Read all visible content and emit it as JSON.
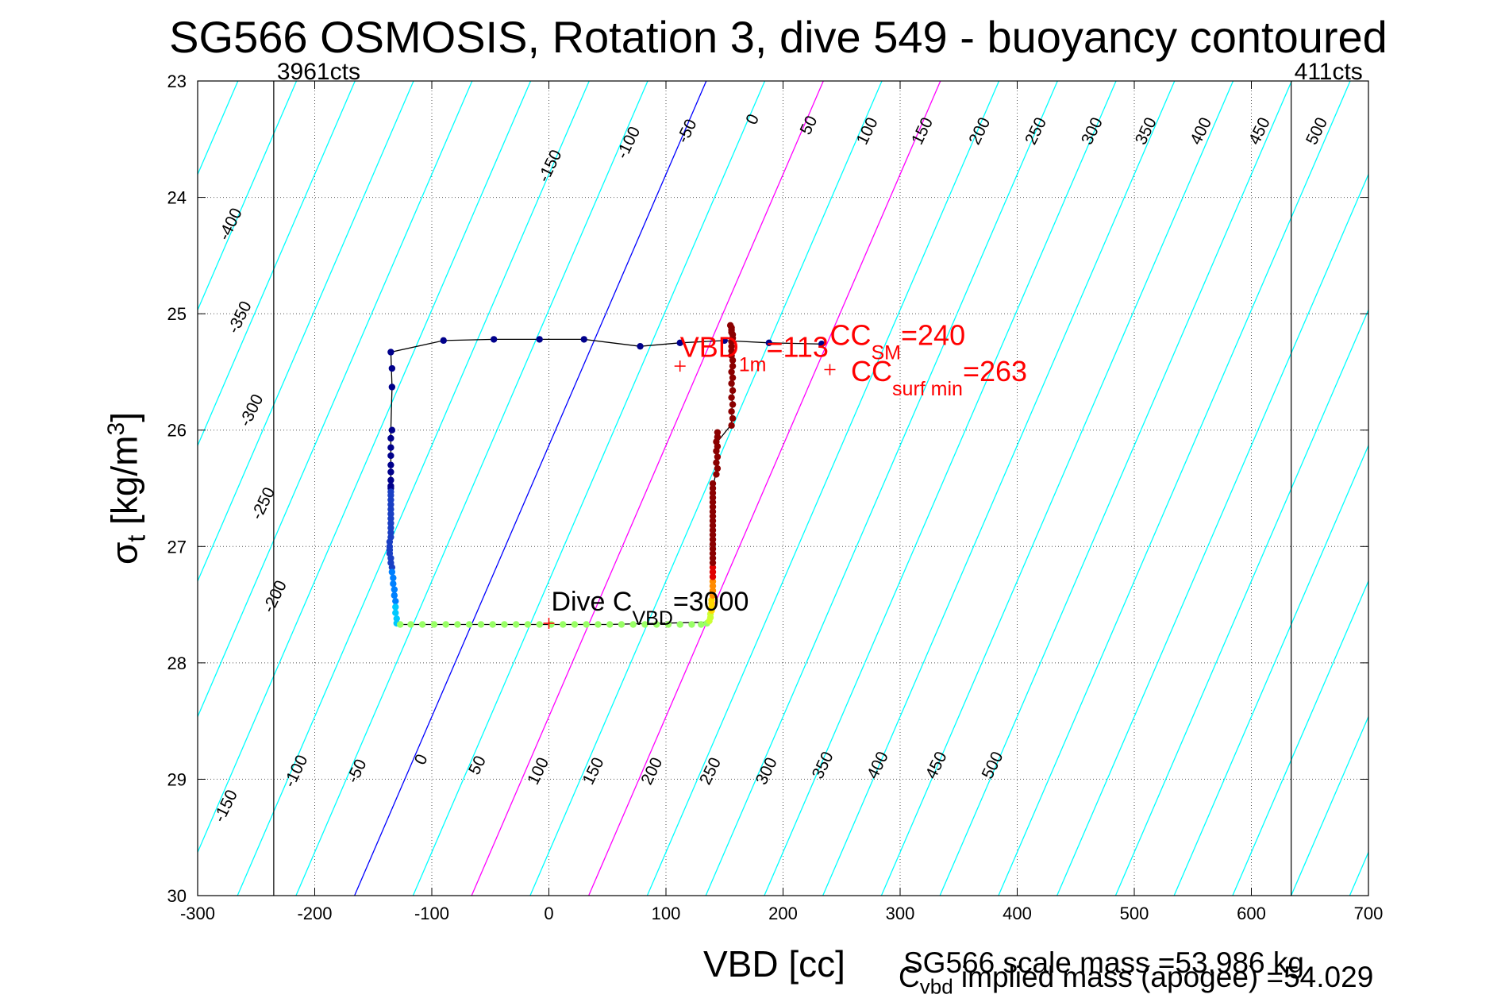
{
  "chart_data": {
    "type": "scatter",
    "title": "SG566 OSMOSIS, Rotation 3, dive 549 - buoyancy contoured",
    "xlabel": "VBD [cc]",
    "ylabel": {
      "main": "σ",
      "sub": "t",
      "unit": " [kg/m",
      "sup": "3",
      "close": "]"
    },
    "xlim": [
      -300,
      700
    ],
    "ylim": [
      23,
      30
    ],
    "y_reversed": true,
    "x_ticks": [
      -300,
      -200,
      -100,
      0,
      100,
      200,
      300,
      400,
      500,
      600,
      700
    ],
    "y_ticks": [
      23,
      24,
      25,
      26,
      27,
      28,
      29,
      30
    ],
    "grid": true,
    "count_markers": [
      {
        "label": "3961cts",
        "x": -235
      },
      {
        "label": "411cts",
        "x": 634
      }
    ],
    "contour_slope_sigma_per_cc": 0.0233,
    "contour_spacing_cc": 50,
    "special_contours": [
      {
        "value": 0,
        "color": "#0000ff"
      },
      {
        "value": 100,
        "color": "#ff00ff"
      },
      {
        "value": 200,
        "color": "#ff00ff"
      }
    ],
    "contour_color": "#00ffff",
    "top_contour_labels": [
      {
        "text": "-400",
        "x": -268,
        "y": 24.25
      },
      {
        "text": "-350",
        "x": -260,
        "y": 25.05
      },
      {
        "text": "-300",
        "x": -250,
        "y": 25.85
      },
      {
        "text": "-250",
        "x": -240,
        "y": 26.65
      },
      {
        "text": "-200",
        "x": -230,
        "y": 27.45
      },
      {
        "text": "-150",
        "x": 5,
        "y": 23.75
      },
      {
        "text": "-100",
        "x": 72,
        "y": 23.55
      },
      {
        "text": "-50",
        "x": 122,
        "y": 23.45
      },
      {
        "text": "0",
        "x": 178,
        "y": 23.35
      },
      {
        "text": "50",
        "x": 226,
        "y": 23.4
      },
      {
        "text": "100",
        "x": 276,
        "y": 23.45
      },
      {
        "text": "150",
        "x": 323,
        "y": 23.45
      },
      {
        "text": "200",
        "x": 372,
        "y": 23.45
      },
      {
        "text": "250",
        "x": 420,
        "y": 23.45
      },
      {
        "text": "300",
        "x": 468,
        "y": 23.45
      },
      {
        "text": "350",
        "x": 514,
        "y": 23.45
      },
      {
        "text": "400",
        "x": 561,
        "y": 23.45
      },
      {
        "text": "450",
        "x": 611,
        "y": 23.45
      },
      {
        "text": "500",
        "x": 660,
        "y": 23.45
      }
    ],
    "bottom_contour_labels": [
      {
        "text": "-150",
        "x": -272,
        "y": 29.25
      },
      {
        "text": "-100",
        "x": -212,
        "y": 28.95
      },
      {
        "text": "-50",
        "x": -160,
        "y": 28.95
      },
      {
        "text": "0",
        "x": -105,
        "y": 28.85
      },
      {
        "text": "50",
        "x": -57,
        "y": 28.9
      },
      {
        "text": "100",
        "x": -5,
        "y": 28.95
      },
      {
        "text": "150",
        "x": 42,
        "y": 28.95
      },
      {
        "text": "200",
        "x": 92,
        "y": 28.95
      },
      {
        "text": "250",
        "x": 142,
        "y": 28.95
      },
      {
        "text": "300",
        "x": 190,
        "y": 28.95
      },
      {
        "text": "350",
        "x": 238,
        "y": 28.9
      },
      {
        "text": "400",
        "x": 285,
        "y": 28.9
      },
      {
        "text": "450",
        "x": 335,
        "y": 28.9
      },
      {
        "text": "500",
        "x": 383,
        "y": 28.9
      }
    ],
    "trajectory": [
      {
        "x": 233,
        "y": 25.26
      },
      {
        "x": 188,
        "y": 25.25
      },
      {
        "x": 150,
        "y": 25.23
      },
      {
        "x": 112,
        "y": 25.25
      },
      {
        "x": 78,
        "y": 25.28
      },
      {
        "x": 30,
        "y": 25.22
      },
      {
        "x": -8,
        "y": 25.22
      },
      {
        "x": -47,
        "y": 25.22
      },
      {
        "x": -90,
        "y": 25.23
      },
      {
        "x": -135,
        "y": 25.33
      },
      {
        "x": -134,
        "y": 25.63
      },
      {
        "x": -135,
        "y": 26.0
      },
      {
        "x": -135,
        "y": 26.5
      },
      {
        "x": -136,
        "y": 27.0
      },
      {
        "x": -132,
        "y": 27.4
      },
      {
        "x": -130,
        "y": 27.67
      },
      {
        "x": -50,
        "y": 27.67
      },
      {
        "x": 50,
        "y": 27.67
      },
      {
        "x": 137,
        "y": 27.65
      },
      {
        "x": 140,
        "y": 27.3
      },
      {
        "x": 140,
        "y": 26.5
      },
      {
        "x": 144,
        "y": 26.3
      },
      {
        "x": 144,
        "y": 26.1
      },
      {
        "x": 156,
        "y": 25.95
      },
      {
        "x": 157,
        "y": 25.6
      },
      {
        "x": 156,
        "y": 25.2
      }
    ],
    "point_groups": [
      {
        "color": "#00008b",
        "x": [
          233,
          188,
          150,
          112,
          78,
          30,
          -8,
          -47,
          -90,
          -135,
          -134,
          -134,
          -134,
          -135,
          -135,
          -135,
          -135,
          -135,
          -135,
          -135,
          -135
        ],
        "y": [
          25.26,
          25.25,
          25.23,
          25.25,
          25.28,
          25.22,
          25.22,
          25.22,
          25.23,
          25.33,
          25.47,
          25.63,
          26.0,
          26.07,
          26.15,
          26.22,
          26.3,
          26.36,
          26.43,
          26.48,
          26.5
        ]
      },
      {
        "color": "#1a3fc4",
        "x": [
          -135,
          -135,
          -135,
          -135,
          -135,
          -135,
          -135,
          -135,
          -135,
          -135,
          -135,
          -136,
          -136,
          -136,
          -136,
          -135,
          -135,
          -134
        ],
        "y": [
          26.53,
          26.56,
          26.6,
          26.64,
          26.68,
          26.72,
          26.76,
          26.8,
          26.84,
          26.88,
          26.92,
          26.96,
          27.0,
          27.03,
          27.06,
          27.1,
          27.14,
          27.18
        ]
      },
      {
        "color": "#0080ff",
        "x": [
          -134,
          -133,
          -133,
          -132,
          -132,
          -131
        ],
        "y": [
          27.22,
          27.27,
          27.32,
          27.37,
          27.42,
          27.47
        ]
      },
      {
        "color": "#00c8ff",
        "x": [
          -131,
          -131,
          -130,
          -130
        ],
        "y": [
          27.52,
          27.57,
          27.62,
          27.66
        ]
      },
      {
        "color": "#99ff66",
        "x": [
          -127,
          -118,
          -108,
          -98,
          -88,
          -78,
          -68,
          -58,
          -48,
          -38,
          -28,
          -18,
          -8,
          2,
          12,
          22,
          32,
          42,
          52,
          62,
          72,
          82,
          92,
          102,
          112,
          122,
          130,
          135
        ],
        "y": [
          27.67,
          27.67,
          27.67,
          27.67,
          27.67,
          27.67,
          27.67,
          27.67,
          27.67,
          27.67,
          27.67,
          27.67,
          27.67,
          27.67,
          27.67,
          27.67,
          27.67,
          27.67,
          27.67,
          27.67,
          27.67,
          27.67,
          27.67,
          27.67,
          27.67,
          27.67,
          27.67,
          27.66
        ]
      },
      {
        "color": "#ccff33",
        "x": [
          137,
          138,
          138
        ],
        "y": [
          27.64,
          27.61,
          27.58
        ]
      },
      {
        "color": "#ffd700",
        "x": [
          139,
          139,
          139,
          139
        ],
        "y": [
          27.55,
          27.52,
          27.49,
          27.46
        ]
      },
      {
        "color": "#ff8c00",
        "x": [
          140,
          140,
          140,
          140
        ],
        "y": [
          27.42,
          27.38,
          27.34,
          27.3
        ]
      },
      {
        "color": "#e00000",
        "x": [
          140,
          140,
          140
        ],
        "y": [
          27.26,
          27.22,
          27.18
        ]
      },
      {
        "color": "#8b0000",
        "x": [
          140,
          140,
          140,
          140,
          140,
          140,
          140,
          140,
          140,
          140,
          140,
          140,
          140,
          140,
          140,
          140,
          140,
          140,
          143,
          144,
          143,
          144,
          143,
          144,
          143,
          144,
          144,
          156,
          157,
          156,
          157,
          156,
          157,
          156,
          157,
          156,
          157,
          157,
          156,
          156,
          156,
          156,
          157,
          157,
          156,
          156,
          156,
          155
        ],
        "y": [
          27.14,
          27.1,
          27.06,
          27.02,
          26.98,
          26.94,
          26.9,
          26.86,
          26.82,
          26.78,
          26.74,
          26.7,
          26.66,
          26.62,
          26.58,
          26.54,
          26.5,
          26.46,
          26.38,
          26.33,
          26.28,
          26.23,
          26.18,
          26.14,
          26.1,
          26.06,
          26.02,
          25.96,
          25.9,
          25.84,
          25.78,
          25.72,
          25.66,
          25.6,
          25.55,
          25.5,
          25.45,
          25.4,
          25.36,
          25.32,
          25.28,
          25.24,
          25.21,
          25.18,
          25.16,
          25.14,
          25.12,
          25.1
        ]
      }
    ],
    "plus_markers": [
      {
        "x": 112,
        "y": 25.45,
        "color": "#ff0000"
      },
      {
        "x": 240,
        "y": 25.48,
        "color": "#ff0000"
      },
      {
        "x": 0,
        "y": 27.66,
        "color": "#ff0000"
      }
    ],
    "annotations": {
      "vbd1m": {
        "main": "VBD",
        "sub": "1m",
        "value": "=113",
        "x": 112,
        "y": 25.37,
        "color": "#ff0000"
      },
      "ccsm": {
        "main": "CC",
        "sub": "SM",
        "value": "=240",
        "x": 240,
        "y": 25.27,
        "color": "#ff0000"
      },
      "ccsurf": {
        "main": "CC",
        "sub": "surf min",
        "value": "=263",
        "x": 258,
        "y": 25.58,
        "color": "#ff0000"
      },
      "dive": {
        "main": "Dive C",
        "sub": "VBD",
        "value": "=3000",
        "x": 2,
        "y": 27.55,
        "color": "#000000"
      }
    },
    "footer": {
      "scale_mass": "SG566 scale mass =53.986 kg",
      "implied": {
        "main": "C",
        "sub": "vbd",
        "value": " implied mass (apogee) =54.029"
      }
    }
  }
}
